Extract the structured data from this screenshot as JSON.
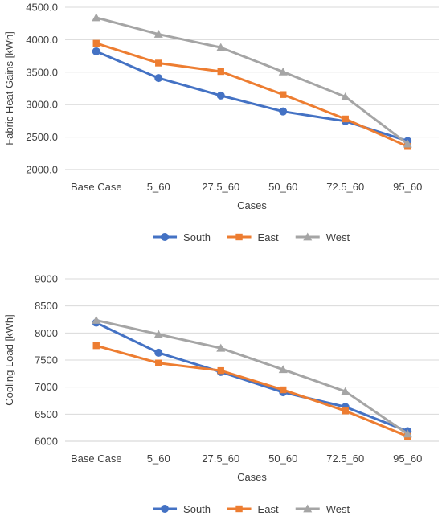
{
  "chart_data": [
    {
      "type": "line",
      "categories": [
        "Base Case",
        "5_60",
        "27.5_60",
        "50_60",
        "72.5_60",
        "95_60"
      ],
      "xlabel": "Cases",
      "ylabel": "Fabric Heat Gains [kWh]",
      "ylim": [
        2000,
        4500
      ],
      "yticks": [
        "2000.0",
        "2500.0",
        "3000.0",
        "3500.0",
        "4000.0",
        "4500.0"
      ],
      "grid": true,
      "legend_position": "bottom",
      "series": [
        {
          "name": "South",
          "color": "#4472C4",
          "marker": "circle",
          "values": [
            3820,
            3410,
            3140,
            2895,
            2745,
            2440
          ]
        },
        {
          "name": "East",
          "color": "#ED7D31",
          "marker": "square",
          "values": [
            3945,
            3640,
            3510,
            3155,
            2780,
            2355
          ]
        },
        {
          "name": "West",
          "color": "#A5A5A5",
          "marker": "triangle",
          "values": [
            4340,
            4085,
            3880,
            3505,
            3120,
            2395
          ]
        }
      ]
    },
    {
      "type": "line",
      "categories": [
        "Base Case",
        "5_60",
        "27.5_60",
        "50_60",
        "72.5_60",
        "95_60"
      ],
      "xlabel": "Cases",
      "ylabel": "Cooling Load [kWh]",
      "ylim": [
        6000,
        9000
      ],
      "yticks": [
        "6000",
        "6500",
        "7000",
        "7500",
        "8000",
        "8500",
        "9000"
      ],
      "grid": true,
      "legend_position": "bottom",
      "series": [
        {
          "name": "South",
          "color": "#4472C4",
          "marker": "circle",
          "values": [
            8190,
            7635,
            7280,
            6905,
            6635,
            6185
          ]
        },
        {
          "name": "East",
          "color": "#ED7D31",
          "marker": "square",
          "values": [
            7765,
            7445,
            7305,
            6950,
            6560,
            6090
          ]
        },
        {
          "name": "West",
          "color": "#A5A5A5",
          "marker": "triangle",
          "values": [
            8235,
            7975,
            7720,
            7325,
            6920,
            6135
          ]
        }
      ]
    }
  ]
}
